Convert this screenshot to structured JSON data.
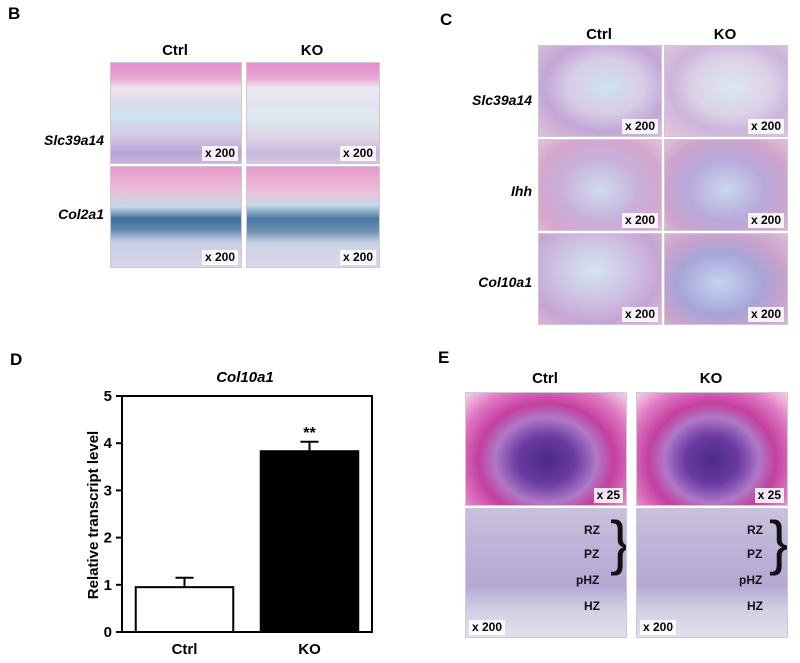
{
  "panels": {
    "B": {
      "label": "B",
      "columns": [
        "Ctrl",
        "KO"
      ],
      "rows": [
        {
          "gene": "Slc39a14",
          "mag": [
            "x 200",
            "x 200"
          ]
        },
        {
          "gene": "Col2a1",
          "mag": [
            "x 200",
            "x 200"
          ]
        }
      ]
    },
    "C": {
      "label": "C",
      "columns": [
        "Ctrl",
        "KO"
      ],
      "rows": [
        {
          "gene": "Slc39a14",
          "mag": [
            "x 200",
            "x 200"
          ]
        },
        {
          "gene": "Ihh",
          "mag": [
            "x 200",
            "x 200"
          ]
        },
        {
          "gene": "Col10a1",
          "mag": [
            "x 200",
            "x 200"
          ]
        }
      ]
    },
    "D": {
      "label": "D"
    },
    "E": {
      "label": "E",
      "columns": [
        "Ctrl",
        "KO"
      ],
      "mag_top": [
        "x 25",
        "x 25"
      ],
      "mag_bottom": [
        "x 200",
        "x 200"
      ],
      "zones": [
        "RZ",
        "PZ",
        "pHZ",
        "HZ"
      ]
    }
  },
  "chart_data": {
    "type": "bar",
    "title": "Col10a1",
    "ylabel": "Relative transcript level",
    "xlabel": "",
    "categories": [
      "Ctrl",
      "KO"
    ],
    "values": [
      0.95,
      3.83
    ],
    "errors": [
      0.2,
      0.2
    ],
    "fill_colors": [
      "#ffffff",
      "#000000"
    ],
    "ylim": [
      0,
      5
    ],
    "yticks": [
      0,
      1,
      2,
      3,
      4,
      5
    ],
    "significance": [
      "",
      "**"
    ],
    "grid": false
  }
}
